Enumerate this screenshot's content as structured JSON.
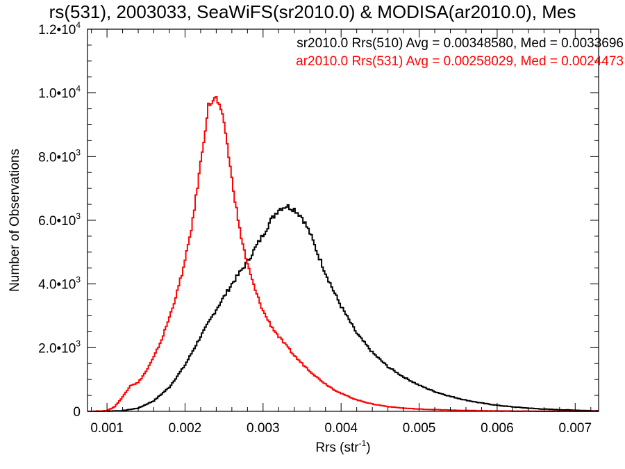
{
  "chart_data": {
    "type": "line",
    "title": "rs(531), 2003033, SeaWiFS(sr2010.0) & MODISA(ar2010.0), Mes",
    "xlabel": {
      "text": "Rrs (str",
      "sup": "-1",
      "close": ")"
    },
    "ylabel": "Number of Observations",
    "xlim": [
      0.00075,
      0.0073
    ],
    "ylim": [
      0,
      12000
    ],
    "x_ticks": [
      {
        "value": 0.001,
        "label": "0.001"
      },
      {
        "value": 0.002,
        "label": "0.002"
      },
      {
        "value": 0.003,
        "label": "0.003"
      },
      {
        "value": 0.004,
        "label": "0.004"
      },
      {
        "value": 0.005,
        "label": "0.005"
      },
      {
        "value": 0.006,
        "label": "0.006"
      },
      {
        "value": 0.007,
        "label": "0.007"
      }
    ],
    "y_ticks": [
      {
        "value": 0,
        "mantissa": "0",
        "exp": ""
      },
      {
        "value": 2000,
        "mantissa": "2.0•10",
        "exp": "3"
      },
      {
        "value": 4000,
        "mantissa": "4.0•10",
        "exp": "3"
      },
      {
        "value": 6000,
        "mantissa": "6.0•10",
        "exp": "3"
      },
      {
        "value": 8000,
        "mantissa": "8.0•10",
        "exp": "3"
      },
      {
        "value": 10000,
        "mantissa": "1.0•10",
        "exp": "4"
      },
      {
        "value": 12000,
        "mantissa": "1.2•10",
        "exp": "4"
      }
    ],
    "legend_placement": "top-right",
    "series": [
      {
        "name": "sr2010.0 Rrs(510) Avg = 0.00348580, Med = 0.0033696",
        "color": "#000000",
        "points": [
          [
            0.0009,
            0
          ],
          [
            0.0012,
            20
          ],
          [
            0.0014,
            100
          ],
          [
            0.0016,
            330
          ],
          [
            0.0018,
            760
          ],
          [
            0.002,
            1450
          ],
          [
            0.0022,
            2350
          ],
          [
            0.0024,
            3200
          ],
          [
            0.0026,
            4000
          ],
          [
            0.0028,
            4700
          ],
          [
            0.003,
            5550
          ],
          [
            0.0031,
            6000
          ],
          [
            0.0032,
            6350
          ],
          [
            0.0033,
            6450
          ],
          [
            0.0034,
            6350
          ],
          [
            0.0035,
            6100
          ],
          [
            0.0036,
            5600
          ],
          [
            0.0037,
            4950
          ],
          [
            0.0038,
            4350
          ],
          [
            0.0039,
            3800
          ],
          [
            0.004,
            3300
          ],
          [
            0.0042,
            2450
          ],
          [
            0.0044,
            1850
          ],
          [
            0.0046,
            1400
          ],
          [
            0.0048,
            1080
          ],
          [
            0.005,
            820
          ],
          [
            0.0052,
            620
          ],
          [
            0.0054,
            470
          ],
          [
            0.0056,
            350
          ],
          [
            0.0058,
            260
          ],
          [
            0.006,
            190
          ],
          [
            0.0062,
            140
          ],
          [
            0.0064,
            100
          ],
          [
            0.0066,
            70
          ],
          [
            0.0068,
            50
          ],
          [
            0.007,
            35
          ],
          [
            0.0072,
            20
          ]
        ]
      },
      {
        "name": "ar2010.0 Rrs(531) Avg = 0.00258029, Med = 0.0024473",
        "color": "#ff0000",
        "points": [
          [
            0.0008,
            0
          ],
          [
            0.001,
            20
          ],
          [
            0.0011,
            150
          ],
          [
            0.0012,
            450
          ],
          [
            0.0013,
            820
          ],
          [
            0.0014,
            900
          ],
          [
            0.0015,
            1250
          ],
          [
            0.0016,
            1700
          ],
          [
            0.0017,
            2250
          ],
          [
            0.0018,
            2950
          ],
          [
            0.0019,
            3750
          ],
          [
            0.002,
            4700
          ],
          [
            0.0021,
            6000
          ],
          [
            0.0022,
            7800
          ],
          [
            0.0023,
            9600
          ],
          [
            0.0024,
            9850
          ],
          [
            0.0025,
            9100
          ],
          [
            0.0026,
            7300
          ],
          [
            0.0027,
            5700
          ],
          [
            0.0028,
            4600
          ],
          [
            0.0029,
            3800
          ],
          [
            0.003,
            3150
          ],
          [
            0.0031,
            2700
          ],
          [
            0.0032,
            2350
          ],
          [
            0.0033,
            2050
          ],
          [
            0.0034,
            1750
          ],
          [
            0.0035,
            1500
          ],
          [
            0.0036,
            1270
          ],
          [
            0.0037,
            1050
          ],
          [
            0.0038,
            860
          ],
          [
            0.0039,
            700
          ],
          [
            0.004,
            560
          ],
          [
            0.0042,
            360
          ],
          [
            0.0044,
            230
          ],
          [
            0.0046,
            150
          ],
          [
            0.0048,
            100
          ],
          [
            0.005,
            70
          ],
          [
            0.0055,
            30
          ],
          [
            0.006,
            10
          ],
          [
            0.0065,
            5
          ],
          [
            0.0072,
            0
          ]
        ]
      }
    ]
  }
}
